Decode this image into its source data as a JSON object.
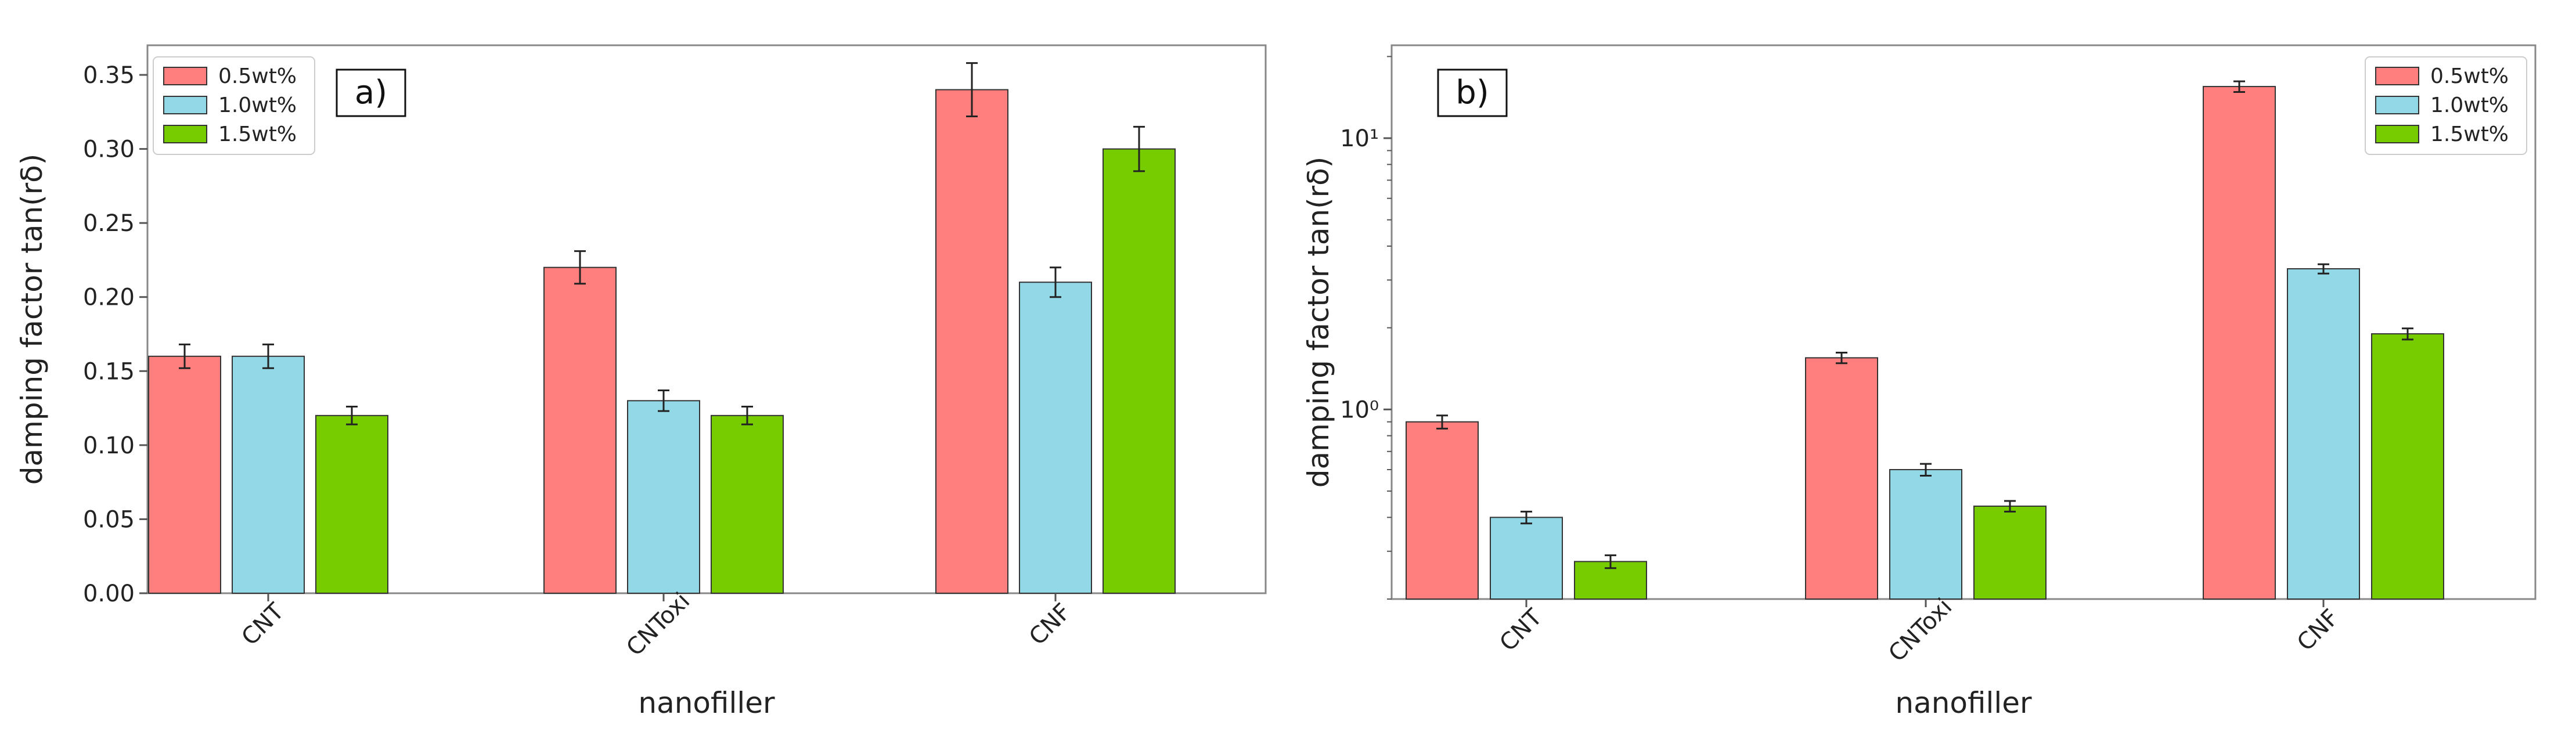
{
  "chart_data": [
    {
      "type": "bar",
      "panel_label": "a)",
      "xlabel": "nanofiller",
      "ylabel": "damping factor tan(rδ)",
      "yscale": "linear",
      "ylim": [
        0,
        0.37
      ],
      "yticks": [
        0.0,
        0.05,
        0.1,
        0.15,
        0.2,
        0.25,
        0.3,
        0.35
      ],
      "ytick_labels": [
        "0.00",
        "0.05",
        "0.10",
        "0.15",
        "0.20",
        "0.25",
        "0.30",
        "0.35"
      ],
      "categories": [
        "CNT",
        "CNToxi",
        "CNF"
      ],
      "legend_position": "top-left",
      "series": [
        {
          "name": "0.5wt%",
          "color": "#ff7f7f",
          "values": [
            0.16,
            0.22,
            0.34
          ],
          "errors": [
            0.008,
            0.011,
            0.018
          ]
        },
        {
          "name": "1.0wt%",
          "color": "#93d8e6",
          "values": [
            0.16,
            0.13,
            0.21
          ],
          "errors": [
            0.008,
            0.007,
            0.01
          ]
        },
        {
          "name": "1.5wt%",
          "color": "#77cc00",
          "values": [
            0.12,
            0.12,
            0.3
          ],
          "errors": [
            0.006,
            0.006,
            0.015
          ]
        }
      ]
    },
    {
      "type": "bar",
      "panel_label": "b)",
      "xlabel": "nanofiller",
      "ylabel": "damping factor tan(rδ)",
      "yscale": "log",
      "ylim": [
        0.2,
        22
      ],
      "ytick_positions": [
        1,
        10
      ],
      "ytick_labels": [
        "10⁰",
        "10¹"
      ],
      "categories": [
        "CNT",
        "CNToxi",
        "CNF"
      ],
      "legend_position": "top-right",
      "series": [
        {
          "name": "0.5wt%",
          "color": "#ff7f7f",
          "values": [
            0.9,
            1.55,
            15.5
          ],
          "errors": [
            0.05,
            0.07,
            0.7
          ]
        },
        {
          "name": "1.0wt%",
          "color": "#93d8e6",
          "values": [
            0.4,
            0.6,
            3.3
          ],
          "errors": [
            0.02,
            0.03,
            0.13
          ]
        },
        {
          "name": "1.5wt%",
          "color": "#77cc00",
          "values": [
            0.275,
            0.44,
            1.9
          ],
          "errors": [
            0.015,
            0.02,
            0.09
          ]
        }
      ]
    }
  ]
}
